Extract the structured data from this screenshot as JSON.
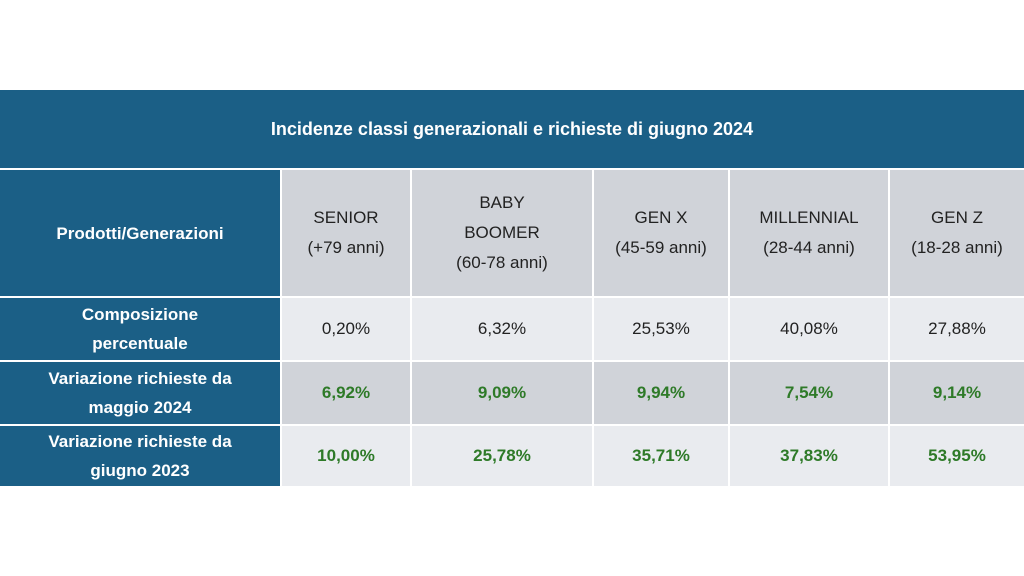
{
  "title": "Incidenze classi generazionali e richieste di giugno 2024",
  "header": {
    "first_col": "Prodotti/Generazioni",
    "generations": [
      {
        "lines": [
          "SENIOR",
          "(+79 anni)"
        ]
      },
      {
        "lines": [
          "BABY",
          "BOOMER",
          "(60-78 anni)"
        ]
      },
      {
        "lines": [
          "GEN X",
          "(45-59 anni)"
        ]
      },
      {
        "lines": [
          "MILLENNIAL",
          "(28-44 anni)"
        ]
      },
      {
        "lines": [
          "GEN Z",
          "(18-28 anni)"
        ]
      }
    ]
  },
  "rows": [
    {
      "label_lines": [
        "Composizione",
        "percentuale"
      ],
      "values": [
        "0,20%",
        "6,32%",
        "25,53%",
        "40,08%",
        "27,88%"
      ]
    },
    {
      "label_lines": [
        "Variazione richieste da",
        "maggio 2024"
      ],
      "values": [
        "6,92%",
        "9,09%",
        "9,94%",
        "7,54%",
        "9,14%"
      ]
    },
    {
      "label_lines": [
        "Variazione richieste da",
        "giugno 2023"
      ],
      "values": [
        "10,00%",
        "25,78%",
        "35,71%",
        "37,83%",
        "53,95%"
      ]
    }
  ],
  "colors": {
    "header_blue": "#1b5f86",
    "cell_dark": "#d0d3d9",
    "cell_light": "#e9ebef",
    "value_green": "#2e7a28"
  }
}
